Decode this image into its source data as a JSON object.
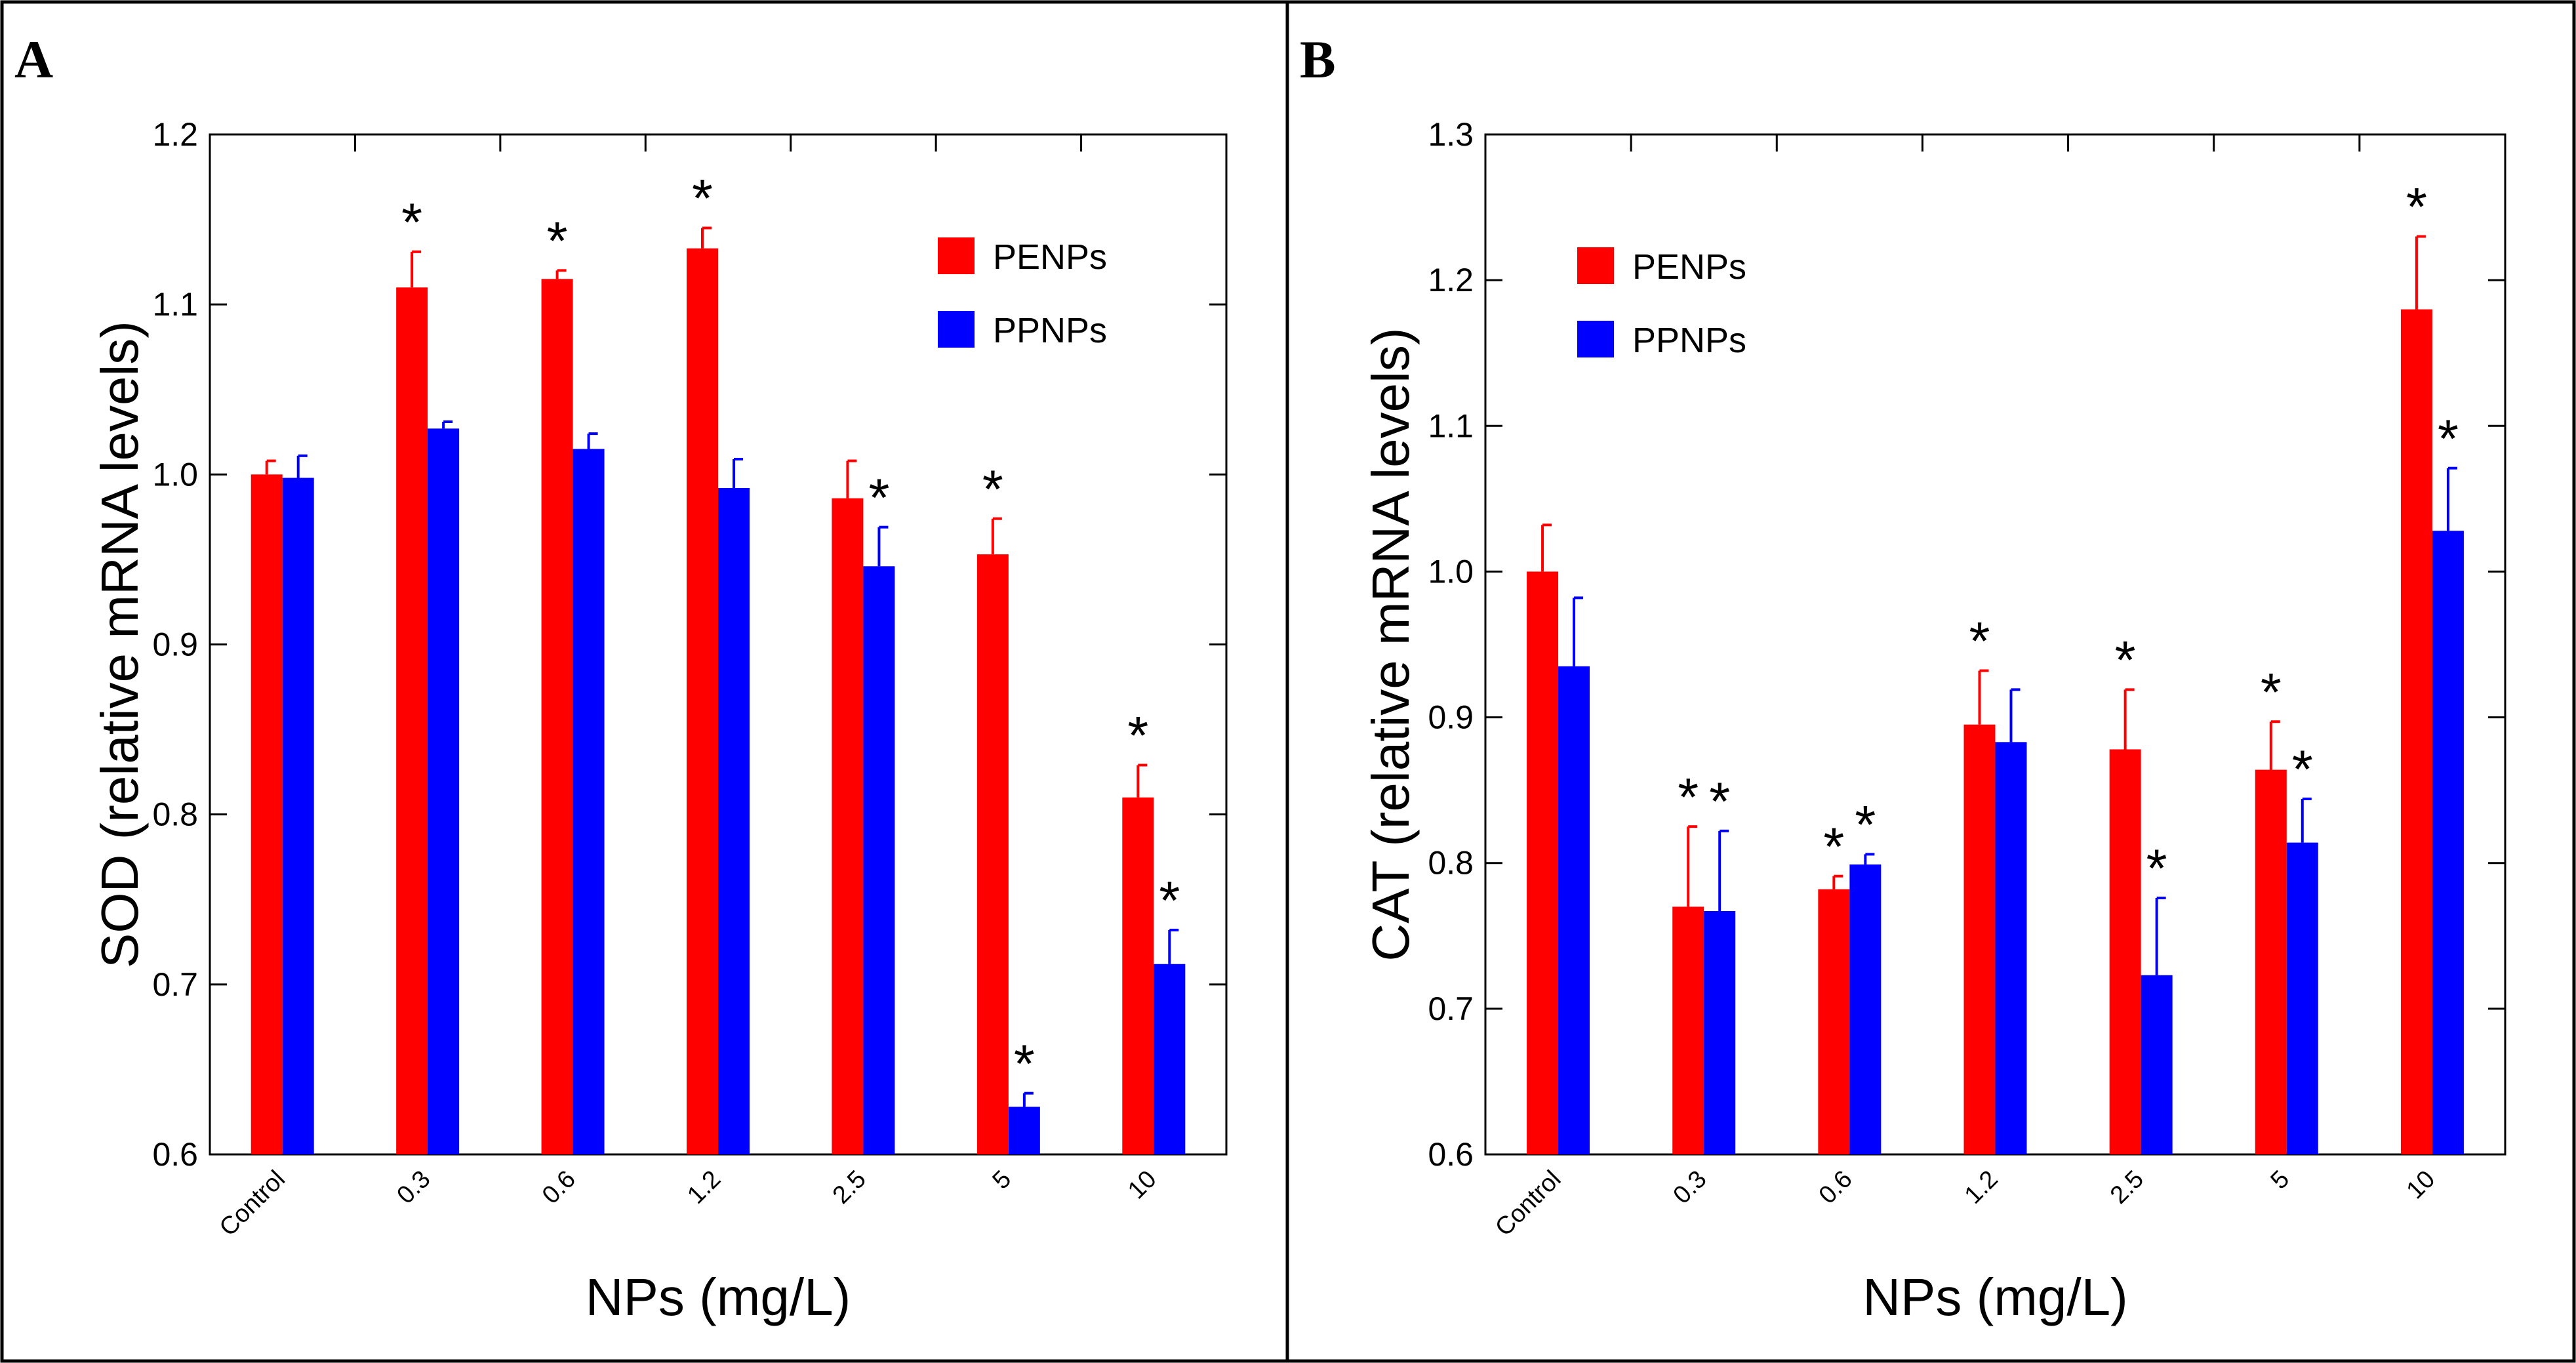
{
  "figure": {
    "panels": [
      "A",
      "B"
    ]
  },
  "colors": {
    "PENPs": "#ff0000",
    "PPNPs": "#0000ff"
  },
  "chart_data": [
    {
      "type": "bar",
      "panel_label": "A",
      "title": "",
      "xlabel": "NPs (mg/L)",
      "ylabel": "SOD (relative mRNA levels)",
      "ylim": [
        0.6,
        1.2
      ],
      "yticks": [
        0.6,
        0.7,
        0.8,
        0.9,
        1.0,
        1.1,
        1.2
      ],
      "ytick_labels": [
        "0.6",
        "0.7",
        "0.8",
        "0.9",
        "1.0",
        "1.1",
        "1.2"
      ],
      "categories": [
        "Control",
        "0.3",
        "0.6",
        "1.2",
        "2.5",
        "5",
        "10"
      ],
      "legend": [
        "PENPs",
        "PPNPs"
      ],
      "legend_position": "top-right",
      "series": [
        {
          "name": "PENPs",
          "values": [
            1.0,
            1.11,
            1.115,
            1.133,
            0.986,
            0.953,
            0.81
          ],
          "errors": [
            0.008,
            0.021,
            0.005,
            0.012,
            0.022,
            0.021,
            0.019
          ],
          "significant": [
            false,
            true,
            true,
            true,
            false,
            true,
            true
          ]
        },
        {
          "name": "PPNPs",
          "values": [
            0.998,
            1.027,
            1.015,
            0.992,
            0.946,
            0.628,
            0.712
          ],
          "errors": [
            0.013,
            0.004,
            0.009,
            0.017,
            0.023,
            0.008,
            0.02
          ],
          "significant": [
            false,
            false,
            false,
            false,
            true,
            true,
            true
          ]
        }
      ],
      "significance_marker": "*"
    },
    {
      "type": "bar",
      "panel_label": "B",
      "title": "",
      "xlabel": "NPs (mg/L)",
      "ylabel": "CAT (relative mRNA levels)",
      "ylim": [
        0.6,
        1.3
      ],
      "yticks": [
        0.6,
        0.7,
        0.8,
        0.9,
        1.0,
        1.1,
        1.2,
        1.3
      ],
      "ytick_labels": [
        "0.6",
        "0.7",
        "0.8",
        "0.9",
        "1.0",
        "1.1",
        "1.2",
        "1.3"
      ],
      "categories": [
        "Control",
        "0.3",
        "0.6",
        "1.2",
        "2.5",
        "5",
        "10"
      ],
      "legend": [
        "PENPs",
        "PPNPs"
      ],
      "legend_position": "top-left",
      "series": [
        {
          "name": "PENPs",
          "values": [
            1.0,
            0.77,
            0.782,
            0.895,
            0.878,
            0.864,
            1.18
          ],
          "errors": [
            0.032,
            0.055,
            0.009,
            0.037,
            0.041,
            0.033,
            0.05
          ],
          "significant": [
            false,
            true,
            true,
            true,
            true,
            true,
            true
          ]
        },
        {
          "name": "PPNPs",
          "values": [
            0.935,
            0.767,
            0.799,
            0.883,
            0.723,
            0.814,
            1.028
          ],
          "errors": [
            0.047,
            0.055,
            0.007,
            0.036,
            0.053,
            0.03,
            0.043
          ],
          "significant": [
            false,
            true,
            true,
            false,
            true,
            true,
            true
          ]
        }
      ],
      "significance_marker": "*"
    }
  ]
}
